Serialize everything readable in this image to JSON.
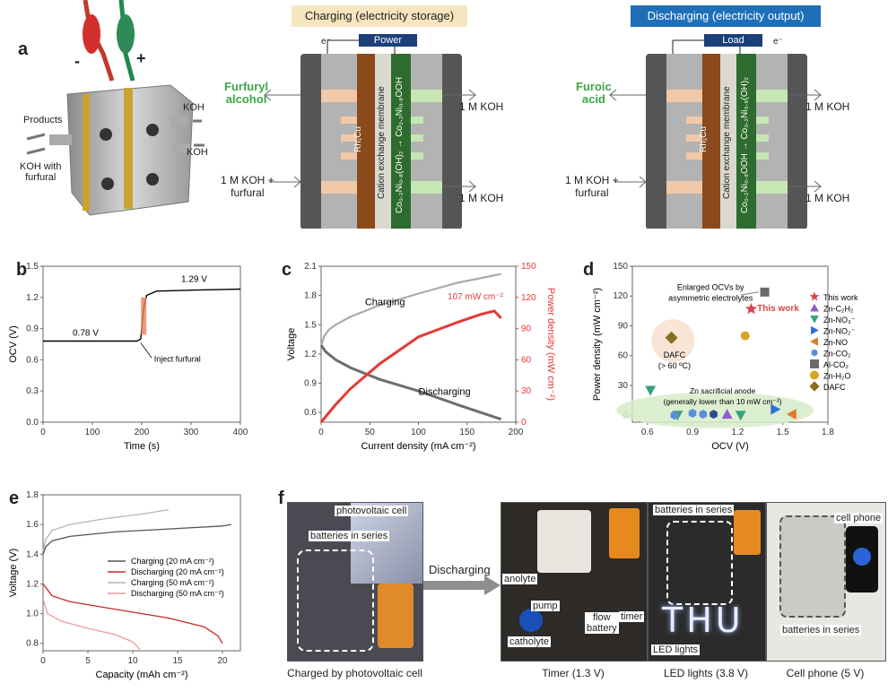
{
  "panel_labels": {
    "a": "a",
    "b": "b",
    "c": "c",
    "d": "d",
    "e": "e",
    "f": "f"
  },
  "panel_a": {
    "sign_minus": "-",
    "sign_plus": "+",
    "products": "Products",
    "koh_top": "KOH",
    "koh_right": "KOH",
    "koh_furfural": "KOH with\nfurfural",
    "charging_header": "Charging (electricity storage)",
    "discharging_header": "Discharging (electricity output)",
    "power_box": "Power",
    "load_box": "Load",
    "electron_left": "e⁻",
    "electron_right": "e⁻",
    "charge_product": "Furfuryl\nalcohol",
    "discharge_product": "Furoic\nacid",
    "out_koh_1": "1 M KOH",
    "out_koh_2": "1 M KOH",
    "in_koh_furfural_1": "1 M KOH +\nfurfural",
    "in_koh_furfural_2": "1 M KOH +\nfurfural",
    "out_koh_3": "1 M KOH",
    "out_koh_4": "1 M KOH",
    "cathode_label": "Rh₁Cu",
    "membrane_label": "Cation exchange membrane",
    "anode_charge": "Co₀.₂Ni₀.₈(OH)₂ → Co₀.₂Ni₀.₈OOH",
    "anode_discharge": "Co₀.₂Ni₀.₈OOH → Co₀.₂Ni₀.₈(OH)₂",
    "colors": {
      "charging_bg": "#f6e6bf",
      "discharging_bg": "#1e6fb8",
      "cathode": "#8a4a1c",
      "anode": "#2e6b2e",
      "product_green": "#3aa843"
    }
  },
  "chart_data": [
    {
      "id": "b",
      "type": "line",
      "xlabel": "Time (s)",
      "ylabel": "OCV (V)",
      "xlim": [
        0,
        400
      ],
      "ylim": [
        0.0,
        1.5
      ],
      "xticks": [
        "0",
        "100",
        "200",
        "300",
        "400"
      ],
      "yticks": [
        "0.0",
        "0.3",
        "0.6",
        "0.9",
        "1.2",
        "1.5"
      ],
      "series": [
        {
          "color": "#000000",
          "x": [
            0,
            190,
            198,
            204,
            210,
            230,
            300,
            400
          ],
          "y": [
            0.78,
            0.78,
            0.8,
            1.1,
            1.22,
            1.26,
            1.27,
            1.28
          ]
        }
      ],
      "annotations": [
        "0.78 V",
        "1.29 V",
        "Inject furfural"
      ]
    },
    {
      "id": "c",
      "type": "line",
      "xlabel": "Current density (mA cm⁻²)",
      "ylabel": "Voltage",
      "y2label": "Power density (mW cm⁻²)",
      "xlim": [
        0,
        200
      ],
      "ylim": [
        0.5,
        2.1
      ],
      "y2lim": [
        0,
        150
      ],
      "xticks": [
        "0",
        "50",
        "100",
        "150",
        "200"
      ],
      "yticks": [
        "0.6",
        "0.9",
        "1.2",
        "1.5",
        "1.8",
        "2.1"
      ],
      "y2ticks": [
        "0",
        "30",
        "60",
        "90",
        "120",
        "150"
      ],
      "series": [
        {
          "name": "Charging",
          "color": "#aaaaaa",
          "x": [
            0,
            3,
            8,
            15,
            30,
            60,
            100,
            140,
            185
          ],
          "y": [
            1.28,
            1.38,
            1.45,
            1.5,
            1.58,
            1.7,
            1.82,
            1.93,
            2.02
          ]
        },
        {
          "name": "Discharging",
          "color": "#6e6e6e",
          "x": [
            0,
            5,
            15,
            30,
            60,
            100,
            140,
            170,
            185
          ],
          "y": [
            1.29,
            1.22,
            1.14,
            1.06,
            0.94,
            0.82,
            0.68,
            0.58,
            0.53
          ]
        },
        {
          "name": "Power",
          "axis": "y2",
          "color": "#e53935",
          "x": [
            0,
            15,
            30,
            60,
            100,
            140,
            165,
            178,
            185
          ],
          "y": [
            0,
            17,
            32,
            56,
            82,
            96,
            104,
            107,
            100
          ]
        }
      ],
      "annotations": [
        "Charging",
        "Discharging",
        "107 mW cm⁻²"
      ]
    },
    {
      "id": "d",
      "type": "scatter",
      "xlabel": "OCV (V)",
      "ylabel": "Power density (mW cm⁻²)",
      "xlim": [
        0.5,
        1.8
      ],
      "ylim": [
        -7,
        150
      ],
      "xticks": [
        "0.6",
        "0.9",
        "1.2",
        "1.5",
        "1.8"
      ],
      "yticks": [
        "0",
        "30",
        "60",
        "90",
        "120",
        "150"
      ],
      "legend": [
        "This work",
        "Zn-C₂H₂",
        "Zn-NO₃⁻",
        "Zn-NO₂⁻",
        "Zn-NO",
        "Zn-CO₂",
        "Al-CO₂",
        "Zn-H₂O",
        "DAFC"
      ],
      "points": [
        {
          "s": "This work",
          "x": 1.29,
          "y": 107,
          "color": "#d64545",
          "marker": "star"
        },
        {
          "s": "Zn-C₂H₂",
          "x": 1.13,
          "y": 1,
          "color": "#8e5dc9",
          "marker": "triangle"
        },
        {
          "s": "Zn-NO₃⁻",
          "x": 0.62,
          "y": 25,
          "color": "#39a17b",
          "marker": "tridown"
        },
        {
          "s": "Zn-NO₃⁻",
          "x": 0.8,
          "y": 0,
          "color": "#39a17b",
          "marker": "tridown"
        },
        {
          "s": "Zn-NO₃⁻",
          "x": 1.22,
          "y": 0,
          "color": "#39a17b",
          "marker": "tridown"
        },
        {
          "s": "Zn-NO₂⁻",
          "x": 1.45,
          "y": 6,
          "color": "#2f6fd6",
          "marker": "triright"
        },
        {
          "s": "Zn-NO",
          "x": 1.56,
          "y": 1,
          "color": "#e07b2a",
          "marker": "trileft"
        },
        {
          "s": "Zn-CO₂",
          "x": 0.78,
          "y": 0,
          "color": "#5b8ed6",
          "marker": "hex"
        },
        {
          "s": "Zn-CO₂",
          "x": 0.9,
          "y": 2,
          "color": "#5b8ed6",
          "marker": "hex"
        },
        {
          "s": "Zn-CO₂",
          "x": 0.97,
          "y": 1,
          "color": "#5b8ed6",
          "marker": "hex"
        },
        {
          "s": "Zn-CO₂",
          "x": 1.04,
          "y": 1,
          "color": "#2c4d8a",
          "marker": "hex"
        },
        {
          "s": "Al-CO₂",
          "x": 1.38,
          "y": 124,
          "color": "#6b6b6b",
          "marker": "square"
        },
        {
          "s": "Zn-H₂O",
          "x": 1.25,
          "y": 80,
          "color": "#d9a521",
          "marker": "circle"
        },
        {
          "s": "DAFC",
          "x": 0.76,
          "y": 78,
          "color": "#8a6d1e",
          "marker": "diamond"
        }
      ],
      "annotations": [
        "Enlarged OCVs by\nasymmetric electrolytes",
        "This work",
        "DAFC\n(> 60 ºC)",
        "Zn sacrificial anode\n(generally lower than 10 mW cm⁻²)"
      ]
    },
    {
      "id": "e",
      "type": "line",
      "xlabel": "Capacity (mAh cm⁻²)",
      "ylabel": "Voltage (V)",
      "xlim": [
        0,
        22
      ],
      "ylim": [
        0.75,
        1.8
      ],
      "xticks": [
        "0",
        "5",
        "10",
        "15",
        "20"
      ],
      "yticks": [
        "0.8",
        "1.0",
        "1.2",
        "1.4",
        "1.6",
        "1.8"
      ],
      "series": [
        {
          "name": "Charging  (20 mA cm⁻²)",
          "color": "#555555",
          "x": [
            0,
            0.3,
            1,
            3,
            8,
            14,
            20,
            21
          ],
          "y": [
            1.4,
            1.45,
            1.49,
            1.52,
            1.55,
            1.57,
            1.59,
            1.6
          ]
        },
        {
          "name": "Discharging (20 mA cm⁻²)",
          "color": "#c62828",
          "x": [
            0,
            1,
            3,
            8,
            14,
            18,
            19.5,
            20
          ],
          "y": [
            1.2,
            1.12,
            1.08,
            1.03,
            0.97,
            0.91,
            0.85,
            0.8
          ]
        },
        {
          "name": "Charging  (50 mA cm⁻²)",
          "color": "#b5b5b5",
          "x": [
            0,
            0.3,
            1,
            3,
            7,
            11,
            14
          ],
          "y": [
            1.42,
            1.5,
            1.56,
            1.6,
            1.64,
            1.67,
            1.7
          ]
        },
        {
          "name": "Discharging (50 mA cm⁻²)",
          "color": "#ee9a9a",
          "x": [
            0,
            0.5,
            2,
            5,
            8,
            10,
            10.8
          ],
          "y": [
            1.1,
            1.0,
            0.95,
            0.9,
            0.86,
            0.81,
            0.76
          ]
        }
      ]
    }
  ],
  "panel_f": {
    "photovoltaic_cell": "photovoltaic cell",
    "batteries_series_1": "batteries in series",
    "discharging_arrow": "Discharging",
    "caption_1": "Charged by photovoltaic cell",
    "anolyte": "anolyte",
    "pump": "pump",
    "catholyte": "catholyte",
    "flow_battery": "flow\nbattery",
    "timer": "timer",
    "caption_2": "Timer (1.3 V)",
    "batteries_series_2": "batteries in series",
    "thu": "THU",
    "led_lights": "LED lights",
    "caption_3": "LED lights (3.8 V)",
    "cell_phone": "cell phone",
    "batteries_series_3": "batteries in series",
    "caption_4": "Cell phone (5 V)"
  }
}
